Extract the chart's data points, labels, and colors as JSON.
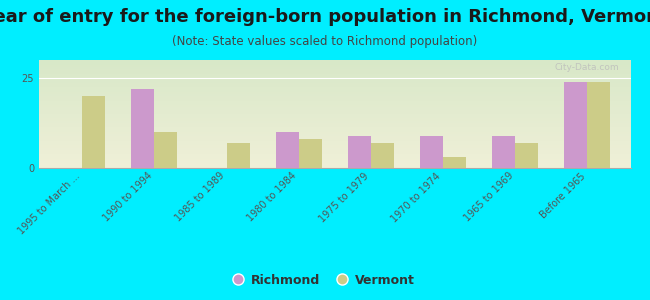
{
  "title": "Year of entry for the foreign-born population in Richmond, Vermont",
  "subtitle": "(Note: State values scaled to Richmond population)",
  "categories": [
    "1995 to March ...",
    "1990 to 1994",
    "1985 to 1989",
    "1980 to 1984",
    "1975 to 1979",
    "1970 to 1974",
    "1965 to 1969",
    "Before 1965"
  ],
  "richmond_values": [
    0,
    22,
    0,
    10,
    9,
    9,
    9,
    24
  ],
  "vermont_values": [
    20,
    10,
    7,
    8,
    7,
    3,
    7,
    24
  ],
  "richmond_color": "#cc99cc",
  "vermont_color": "#cccc88",
  "bg_color": "#00eeff",
  "plot_bg_top": "#d8e8c8",
  "plot_bg_bottom": "#f0f0d8",
  "ylim": [
    0,
    30
  ],
  "yticks": [
    0,
    25
  ],
  "bar_width": 0.32,
  "title_fontsize": 13,
  "subtitle_fontsize": 8.5,
  "tick_fontsize": 7,
  "watermark": "City-Data.com"
}
